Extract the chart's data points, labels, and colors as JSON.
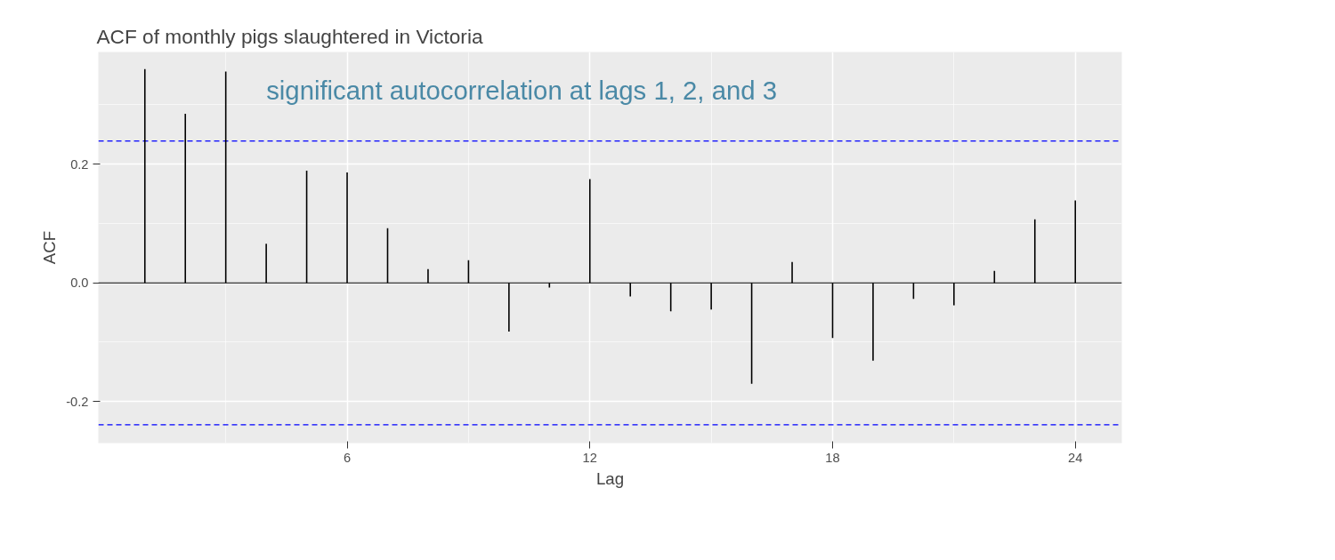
{
  "chart_data": {
    "type": "bar",
    "title": "ACF of monthly pigs slaughtered in Victoria",
    "xlabel": "Lag",
    "ylabel": "ACF",
    "x": [
      1,
      2,
      3,
      4,
      5,
      6,
      7,
      8,
      9,
      10,
      11,
      12,
      13,
      14,
      15,
      16,
      17,
      18,
      19,
      20,
      21,
      22,
      23,
      24
    ],
    "values": [
      0.36,
      0.285,
      0.356,
      0.066,
      0.189,
      0.186,
      0.092,
      0.023,
      0.038,
      -0.082,
      -0.008,
      0.175,
      -0.023,
      -0.048,
      -0.045,
      -0.17,
      0.035,
      -0.093,
      -0.131,
      -0.027,
      -0.038,
      0.02,
      0.107,
      0.139
    ],
    "color": "#000000",
    "xlim": [
      -0.15,
      25.15
    ],
    "xticks": [
      6,
      12,
      18,
      24
    ],
    "ylim": [
      -0.27,
      0.389
    ],
    "yticks": [
      {
        "value": -0.2,
        "label": "-0.2"
      },
      {
        "value": 0,
        "label": "0.0"
      },
      {
        "value": 0.2,
        "label": "0.2"
      }
    ],
    "grid": true,
    "ref_lines": [
      {
        "axis": "y",
        "value": 0,
        "color": "#000000",
        "line_style": "solid"
      },
      {
        "axis": "y",
        "value": 0.239,
        "color": "#0000ff",
        "line_style": "dashed"
      },
      {
        "axis": "y",
        "value": -0.239,
        "color": "#0000ff",
        "line_style": "dashed"
      }
    ],
    "annotations": [
      "significant autocorrelation at lags 1, 2, and 3"
    ]
  }
}
